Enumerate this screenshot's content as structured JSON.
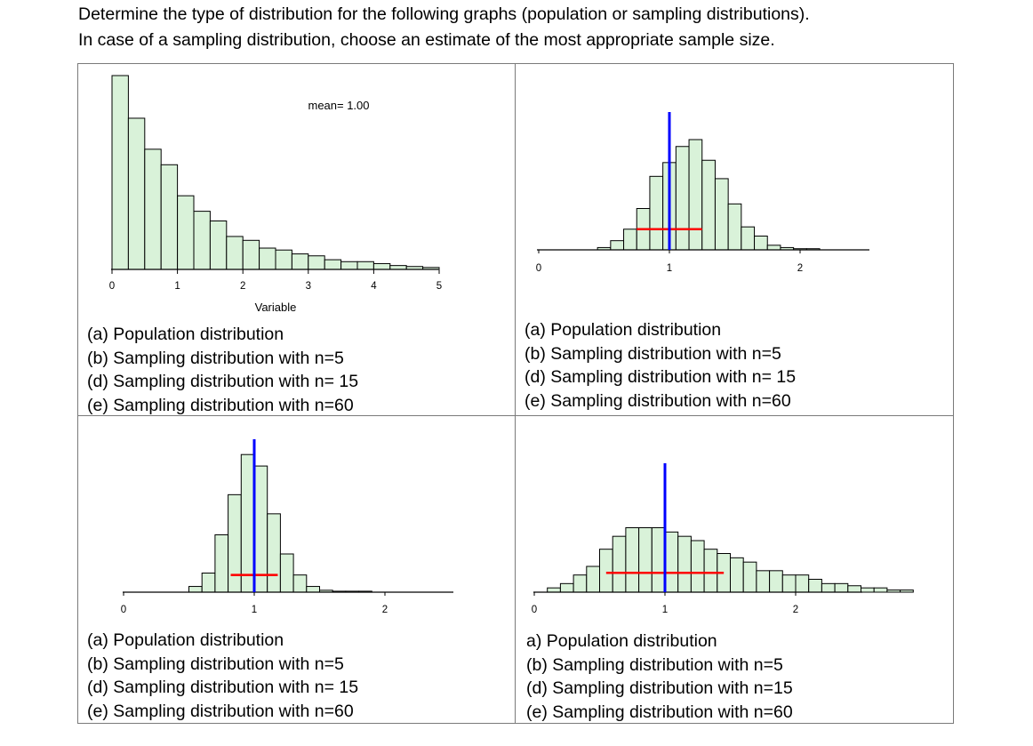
{
  "instructions": [
    "Determine the type of distribution for the following graphs (population or sampling distributions).",
    "In case of a sampling distribution, choose an estimate of the most appropriate sample size."
  ],
  "chart_data": [
    {
      "type": "bar",
      "panel": "top-left",
      "annotation": "mean= 1.00",
      "xlabel": "Variable",
      "xlim": [
        0,
        5
      ],
      "x_ticks": [
        "0",
        "1",
        "2",
        "3",
        "4",
        "5"
      ],
      "bin_width": 0.25,
      "bin_start": 0,
      "values": [
        100,
        78,
        62,
        54,
        38,
        30,
        25,
        17,
        15,
        11,
        10,
        8,
        7,
        5,
        4,
        4,
        3,
        2,
        1.5,
        1
      ],
      "ylim": [
        0,
        100
      ],
      "colors": {
        "fill": "#d9f2d9",
        "stroke": "#000000"
      }
    },
    {
      "type": "bar",
      "panel": "top-right",
      "xlim": [
        0,
        2.5
      ],
      "x_ticks": [
        "0",
        "1",
        "2"
      ],
      "bin_width": 0.1,
      "bin_start": 0.45,
      "values": [
        1,
        4,
        9,
        18,
        32,
        38,
        45,
        48,
        39,
        31,
        20,
        10,
        6,
        2,
        1,
        0.5,
        0.5
      ],
      "ylim": [
        0,
        60
      ],
      "mean": 1.0,
      "mean_line_height": 60,
      "spread_line": [
        0.75,
        1.25
      ],
      "spread_line_height": 9,
      "colors": {
        "fill": "#d9f2d9",
        "stroke": "#000000",
        "mean": "#0000ff",
        "spread": "#ff0000"
      }
    },
    {
      "type": "bar",
      "panel": "bottom-left",
      "xlim": [
        0,
        2.5
      ],
      "x_ticks": [
        "0",
        "1",
        "2"
      ],
      "bin_width": 0.1,
      "bin_start": 0.5,
      "values": [
        3,
        10,
        30,
        51,
        72,
        66,
        41,
        20,
        9,
        3,
        1,
        0.5,
        0.5,
        0.5
      ],
      "ylim": [
        0,
        80
      ],
      "mean": 1.0,
      "mean_line_height": 80,
      "spread_line": [
        0.82,
        1.18
      ],
      "spread_line_height": 9,
      "colors": {
        "fill": "#d9f2d9",
        "stroke": "#000000",
        "mean": "#0000ff",
        "spread": "#ff0000"
      }
    },
    {
      "type": "bar",
      "panel": "bottom-right",
      "xlim": [
        0,
        2.5
      ],
      "x_ticks": [
        "0",
        "1",
        "2"
      ],
      "bin_width": 0.1,
      "bin_start": 0.1,
      "values": [
        1,
        2,
        4,
        6,
        10,
        13,
        15,
        15,
        15,
        14,
        13,
        12,
        10,
        9,
        8,
        7,
        5,
        5,
        4,
        4,
        3,
        2,
        2,
        1.5,
        1,
        1,
        0.5,
        0.5
      ],
      "ylim": [
        0,
        30
      ],
      "mean": 1.0,
      "mean_line_height": 30,
      "spread_line": [
        0.55,
        1.45
      ],
      "spread_line_height": 4.5,
      "colors": {
        "fill": "#d9f2d9",
        "stroke": "#000000",
        "mean": "#0000ff",
        "spread": "#ff0000"
      }
    }
  ],
  "options": {
    "top_left": [
      "(a) Population distribution",
      "(b) Sampling distribution with n=5",
      "(d) Sampling distribution with n= 15",
      "(e) Sampling distribution with n=60"
    ],
    "top_right": [
      "(a) Population distribution",
      "(b) Sampling distribution with n=5",
      "(d) Sampling distribution with n= 15",
      "(e) Sampling distribution with n=60"
    ],
    "bottom_left": [
      "(a) Population distribution",
      "(b) Sampling distribution with n=5",
      "(d) Sampling distribution with n= 15",
      "(e) Sampling distribution with n=60"
    ],
    "bottom_right": [
      "a) Population distribution",
      "(b) Sampling distribution with n=5",
      "(d) Sampling distribution with n=15",
      "(e) Sampling distribution with n=60"
    ]
  }
}
